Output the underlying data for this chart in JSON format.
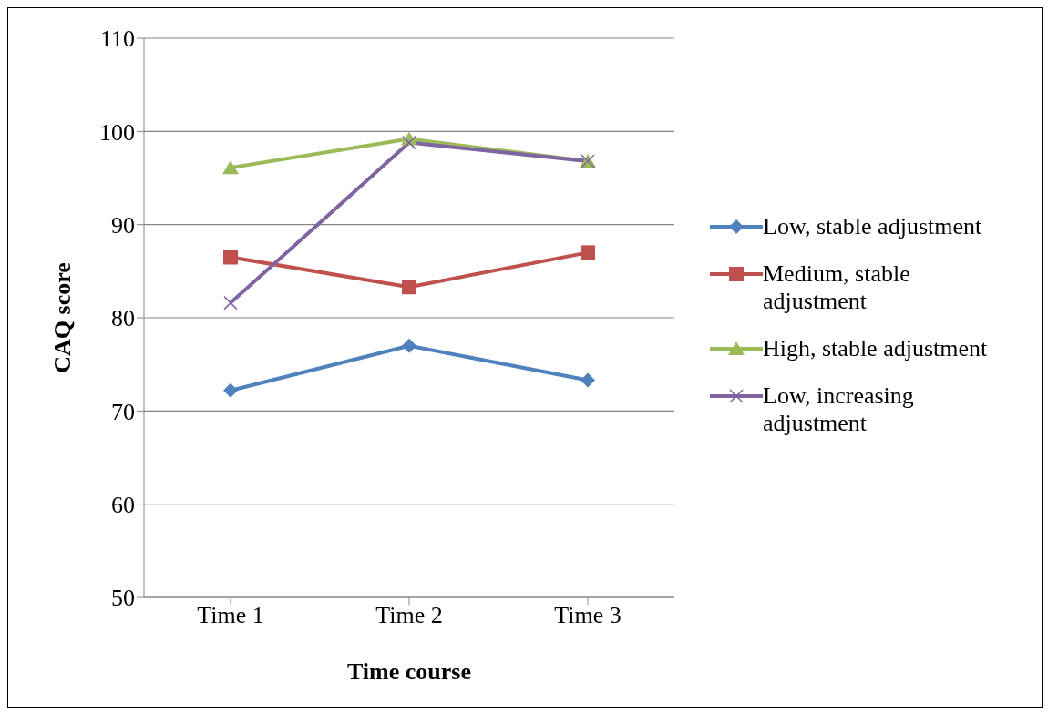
{
  "chart_data": {
    "type": "line",
    "xlabel": "Time course",
    "ylabel": "CAQ score",
    "categories": [
      "Time 1",
      "Time 2",
      "Time 3"
    ],
    "series": [
      {
        "name": "Low, stable adjustment",
        "color": "#4f81bd",
        "marker": "diamond",
        "values": [
          72.2,
          77.0,
          73.3
        ]
      },
      {
        "name": "Medium, stable adjustment",
        "color": "#c0504d",
        "marker": "square",
        "values": [
          86.5,
          83.3,
          87.0
        ]
      },
      {
        "name": "High, stable adjustment",
        "color": "#9bbb59",
        "marker": "triangle",
        "values": [
          96.1,
          99.2,
          96.8
        ]
      },
      {
        "name": "Low, increasing adjustment",
        "color": "#8064a2",
        "marker": "cross",
        "values": [
          81.6,
          98.8,
          96.8
        ]
      }
    ],
    "ylim": [
      50,
      110
    ],
    "yticks": [
      50,
      60,
      70,
      80,
      90,
      100,
      110
    ],
    "grid": "y",
    "legend": "right",
    "line_style": "solid"
  }
}
